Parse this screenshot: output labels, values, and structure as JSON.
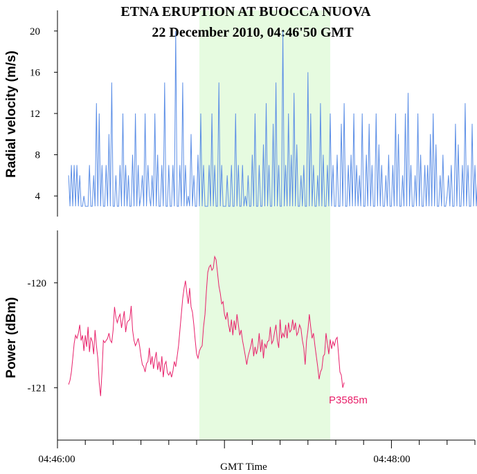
{
  "chart_data": [
    {
      "type": "line",
      "title": "ETNA ERUPTION AT BUOCCA NUOVA",
      "subtitle": "22 December 2010, 04:46'50 GMT",
      "xlabel": "GMT Time",
      "ylabel": "Radial velocity (m/s)",
      "x_tick_labels": [
        "04:46:00",
        "04:48:00"
      ],
      "xlim_seconds_from_0446": [
        0,
        150
      ],
      "ylim": [
        2,
        22
      ],
      "yticks": [
        4,
        8,
        12,
        16,
        20
      ],
      "highlight_interval_seconds": [
        51,
        98
      ],
      "highlight_color": "#e6fbe0",
      "line_color": "#5b8ee6",
      "series": [
        {
          "x_start_seconds": 4,
          "x_step_seconds": 0.5,
          "values": [
            6,
            3,
            7,
            3,
            7,
            3,
            7,
            3,
            6,
            3,
            3,
            4,
            3,
            3,
            3,
            7,
            3,
            3,
            6,
            3,
            13,
            3,
            12,
            3,
            7,
            3,
            3,
            7,
            3,
            10,
            3,
            15,
            3,
            3,
            6,
            3,
            3,
            7,
            3,
            12,
            3,
            7,
            3,
            6,
            3,
            3,
            8,
            3,
            12,
            3,
            7,
            3,
            4,
            6,
            3,
            12,
            3,
            7,
            4,
            3,
            6,
            3,
            12,
            3,
            8,
            3,
            3,
            7,
            3,
            15,
            3,
            3,
            7,
            3,
            3,
            7,
            3,
            20,
            3,
            3,
            7,
            3,
            15,
            3,
            7,
            3,
            4,
            3,
            10,
            3,
            6,
            3,
            3,
            8,
            3,
            12,
            3,
            7,
            3,
            3,
            3,
            7,
            3,
            12,
            3,
            7,
            3,
            3,
            15,
            3,
            7,
            3,
            3,
            3,
            6,
            3,
            3,
            7,
            3,
            3,
            12,
            3,
            7,
            3,
            3,
            7,
            3,
            4,
            3,
            6,
            3,
            3,
            8,
            3,
            12,
            3,
            3,
            7,
            3,
            3,
            9,
            3,
            13,
            3,
            7,
            3,
            3,
            11,
            3,
            15,
            3,
            7,
            3,
            3,
            20,
            3,
            7,
            3,
            12,
            3,
            8,
            3,
            14,
            3,
            9,
            3,
            3,
            6,
            3,
            7,
            3,
            3,
            16,
            3,
            12,
            3,
            7,
            3,
            3,
            6,
            3,
            13,
            3,
            8,
            3,
            3,
            7,
            3,
            12,
            3,
            7,
            3,
            3,
            8,
            3,
            3,
            11,
            3,
            13,
            3,
            3,
            7,
            3,
            8,
            3,
            12,
            3,
            7,
            3,
            6,
            3,
            12,
            3,
            3,
            8,
            3,
            11,
            3,
            7,
            3,
            3,
            12,
            3,
            9,
            3,
            7,
            3,
            3,
            6,
            3,
            8,
            3,
            3,
            7,
            3,
            12,
            3,
            10,
            3,
            3,
            6,
            3,
            12,
            3,
            14,
            3,
            7,
            3,
            3,
            6,
            3,
            12,
            3,
            8,
            3,
            3,
            7,
            3,
            7,
            3,
            10,
            3,
            12,
            3,
            9,
            3,
            3,
            6,
            3,
            8,
            3,
            3,
            4,
            6,
            3,
            7,
            3,
            3,
            11,
            3,
            9,
            3,
            3,
            7,
            3,
            13,
            3,
            7,
            3,
            3,
            11,
            3,
            7,
            3,
            6,
            3,
            3,
            8,
            3,
            3,
            9,
            3,
            10,
            3,
            7,
            3
          ]
        }
      ]
    },
    {
      "type": "line",
      "xlabel": "GMT Time",
      "ylabel": "Power (dBm)",
      "x_tick_labels": [
        "04:46:00",
        "04:48:00"
      ],
      "xlim_seconds_from_0446": [
        0,
        150
      ],
      "ylim": [
        -121.5,
        -119.5
      ],
      "yticks": [
        -120,
        -121
      ],
      "line_color": "#e8206a",
      "annotation": "P3585m",
      "series": [
        {
          "x_start_seconds": 4,
          "x_step_seconds": 0.5,
          "values": [
            -120.97,
            -120.93,
            -120.85,
            -120.72,
            -120.58,
            -120.5,
            -120.53,
            -120.48,
            -120.4,
            -120.55,
            -120.5,
            -120.65,
            -120.5,
            -120.61,
            -120.42,
            -120.66,
            -120.52,
            -120.56,
            -120.68,
            -120.45,
            -120.6,
            -120.72,
            -120.95,
            -121.08,
            -120.85,
            -120.55,
            -120.57,
            -120.55,
            -120.53,
            -120.48,
            -120.55,
            -120.57,
            -120.45,
            -120.23,
            -120.33,
            -120.38,
            -120.33,
            -120.3,
            -120.43,
            -120.35,
            -120.27,
            -120.47,
            -120.38,
            -120.36,
            -120.35,
            -120.22,
            -120.45,
            -120.55,
            -120.6,
            -120.57,
            -120.53,
            -120.6,
            -120.7,
            -120.78,
            -120.8,
            -120.85,
            -120.77,
            -120.75,
            -120.62,
            -120.78,
            -120.7,
            -120.82,
            -120.73,
            -120.66,
            -120.83,
            -120.75,
            -120.85,
            -120.7,
            -120.9,
            -120.78,
            -120.75,
            -120.86,
            -120.88,
            -120.85,
            -120.9,
            -120.84,
            -120.75,
            -120.8,
            -120.7,
            -120.6,
            -120.45,
            -120.3,
            -120.15,
            -120.05,
            -119.98,
            -120.1,
            -120.2,
            -120.05,
            -120.23,
            -120.28,
            -120.4,
            -120.55,
            -120.68,
            -120.72,
            -120.65,
            -120.62,
            -120.6,
            -120.42,
            -120.3,
            -120.08,
            -119.9,
            -119.85,
            -119.83,
            -119.88,
            -119.86,
            -119.75,
            -119.78,
            -119.9,
            -120.03,
            -120.1,
            -120.2,
            -120.18,
            -120.3,
            -120.35,
            -120.28,
            -120.4,
            -120.47,
            -120.35,
            -120.5,
            -120.36,
            -120.45,
            -120.3,
            -120.4,
            -120.5,
            -120.45,
            -120.55,
            -120.62,
            -120.7,
            -120.78,
            -120.7,
            -120.65,
            -120.6,
            -120.53,
            -120.7,
            -120.61,
            -120.68,
            -120.62,
            -120.48,
            -120.66,
            -120.54,
            -120.72,
            -120.58,
            -120.62,
            -120.56,
            -120.55,
            -120.42,
            -120.58,
            -120.55,
            -120.47,
            -120.4,
            -120.55,
            -120.62,
            -120.35,
            -120.53,
            -120.48,
            -120.52,
            -120.4,
            -120.53,
            -120.38,
            -120.47,
            -120.45,
            -120.35,
            -120.45,
            -120.38,
            -120.5,
            -120.47,
            -120.4,
            -120.44,
            -120.55,
            -120.62,
            -120.78,
            -120.55,
            -120.45,
            -120.3,
            -120.42,
            -120.53,
            -120.48,
            -120.6,
            -120.7,
            -120.8,
            -120.92,
            -120.85,
            -120.82,
            -120.7,
            -120.68,
            -120.48,
            -120.58,
            -120.68,
            -120.54,
            -120.63,
            -120.56,
            -120.6,
            -120.54,
            -120.52,
            -120.68,
            -120.85,
            -120.88,
            -121.0,
            -120.95
          ]
        }
      ]
    }
  ]
}
